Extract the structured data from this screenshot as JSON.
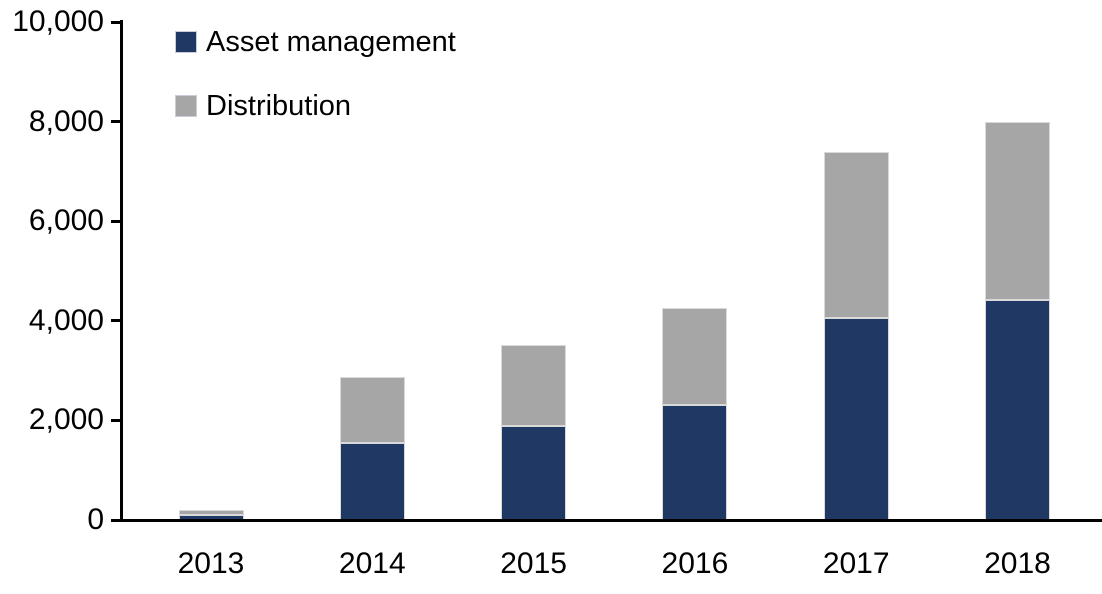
{
  "chart_data": {
    "type": "bar",
    "stacked": true,
    "title": "",
    "xlabel": "",
    "ylabel": "",
    "categories": [
      "2013",
      "2014",
      "2015",
      "2016",
      "2017",
      "2018"
    ],
    "series": [
      {
        "name": "Asset management",
        "color": "#203864",
        "values": [
          100,
          1550,
          1890,
          2310,
          4050,
          4420
        ]
      },
      {
        "name": "Distribution",
        "color": "#A6A6A6",
        "values": [
          110,
          1325,
          1620,
          1940,
          3330,
          3580
        ]
      }
    ],
    "totals": [
      210,
      2875,
      3510,
      4250,
      7380,
      8000
    ],
    "ylim": [
      0,
      10000
    ],
    "ytick_values": [
      0,
      2000,
      4000,
      6000,
      8000,
      10000
    ],
    "ytick_labels": [
      "0",
      "2,000",
      "4,000",
      "6,000",
      "8,000",
      "10,000"
    ],
    "grid": false,
    "legend_position": "top-left",
    "axis_color": "#000000",
    "background_color": "#FFFFFF"
  }
}
